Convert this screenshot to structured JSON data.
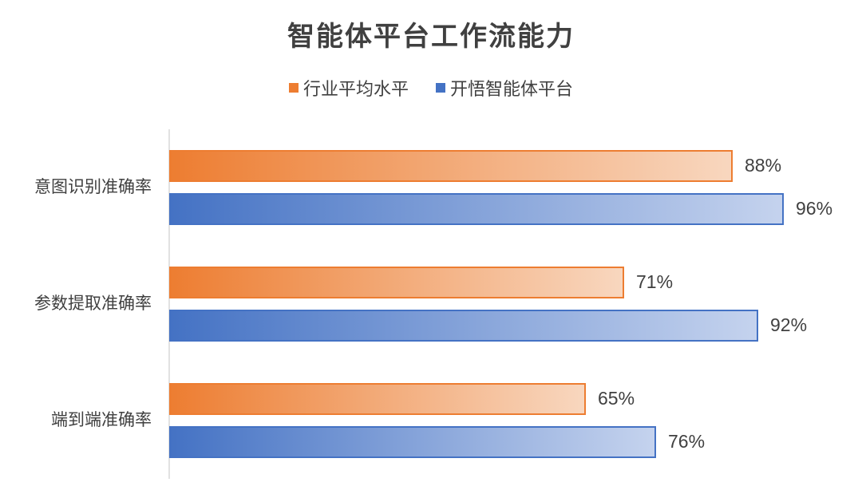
{
  "chart_data": {
    "type": "bar",
    "orientation": "horizontal",
    "title": "智能体平台工作流能力",
    "categories": [
      "意图识别准确率",
      "参数提取准确率",
      "端到端准确率"
    ],
    "series": [
      {
        "name": "行业平均水平",
        "values": [
          88,
          71,
          65
        ],
        "labels": [
          "88%",
          "71%",
          "65%"
        ],
        "color": "#ED7D31",
        "gradient_end": "#F8D7BF"
      },
      {
        "name": "开悟智能体平台",
        "values": [
          96,
          92,
          76
        ],
        "labels": [
          "96%",
          "92%",
          "76%"
        ],
        "color": "#4472C4",
        "gradient_end": "#C5D3EE"
      }
    ],
    "xlim": [
      0,
      100
    ],
    "grid": false,
    "legend_position": "top"
  }
}
